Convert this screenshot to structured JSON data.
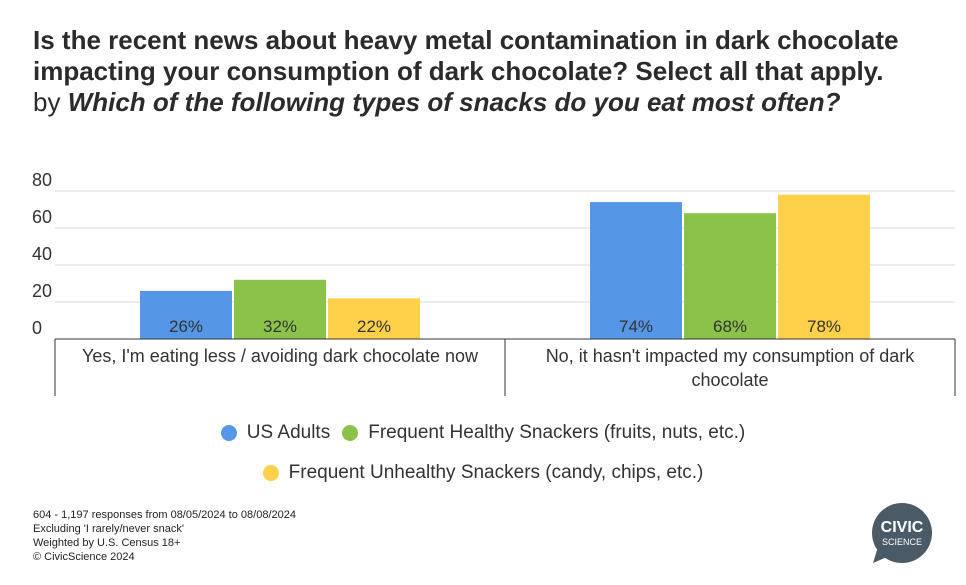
{
  "header": {
    "title_line1": "Is the recent news about heavy metal contamination in dark chocolate",
    "title_line2": "impacting your consumption of dark chocolate? Select all that apply.",
    "subtitle_by": "by",
    "subtitle_question": "Which of the following types of snacks do you eat most often?"
  },
  "chart_data": {
    "type": "bar",
    "categories": [
      "Yes, I'm eating less / avoiding dark chocolate now",
      "No, it hasn't impacted my consumption of dark chocolate"
    ],
    "category_lines": [
      [
        "Yes, I'm eating less / avoiding dark chocolate now"
      ],
      [
        "No, it hasn't impacted my consumption of dark",
        "chocolate"
      ]
    ],
    "series": [
      {
        "name": "US Adults",
        "color": "#5596e6",
        "values": [
          26,
          74
        ]
      },
      {
        "name": "Frequent Healthy Snackers (fruits, nuts, etc.)",
        "color": "#8bc34a",
        "values": [
          32,
          68
        ]
      },
      {
        "name": "Frequent Unhealthy Snackers (candy, chips, etc.)",
        "color": "#ffd04a",
        "values": [
          22,
          78
        ]
      }
    ],
    "data_labels": [
      [
        "26%",
        "74%"
      ],
      [
        "32%",
        "68%"
      ],
      [
        "22%",
        "78%"
      ]
    ],
    "ylim": [
      0,
      80
    ],
    "yticks": [
      0,
      20,
      40,
      60,
      80
    ],
    "grid": true,
    "legend_position": "bottom"
  },
  "footer": {
    "line1": "604  - 1,197 responses from 08/05/2024 to 08/08/2024",
    "line2": "Excluding 'I rarely/never snack'",
    "line3": "Weighted by U.S. Census 18+",
    "line4": "© CivicScience 2024"
  },
  "logo": {
    "word1": "CIVIC",
    "word2": "SCIENCE",
    "color": "#4a5a66"
  }
}
